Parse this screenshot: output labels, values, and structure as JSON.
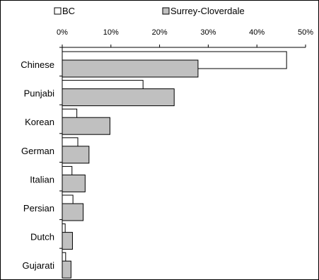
{
  "chart_data": {
    "type": "bar",
    "orientation": "horizontal",
    "categories": [
      "Chinese",
      "Punjabi",
      "Korean",
      "German",
      "Italian",
      "Persian",
      "Dutch",
      "Gujarati"
    ],
    "series": [
      {
        "name": "BC",
        "color": "#ffffff",
        "values": [
          46.1,
          16.6,
          3.0,
          3.2,
          2.0,
          2.2,
          0.6,
          0.7
        ]
      },
      {
        "name": "Surrey-Cloverdale",
        "color": "#c0c0c0",
        "values": [
          27.9,
          23.0,
          9.8,
          5.5,
          4.7,
          4.3,
          2.1,
          1.8
        ]
      }
    ],
    "xlim": [
      0,
      50
    ],
    "xticks": [
      "0%",
      "10%",
      "20%",
      "30%",
      "40%",
      "50%"
    ],
    "xtick_values": [
      0,
      10,
      20,
      30,
      40,
      50
    ],
    "xaxis_position": "top",
    "legend_position": "top",
    "grid": false
  }
}
